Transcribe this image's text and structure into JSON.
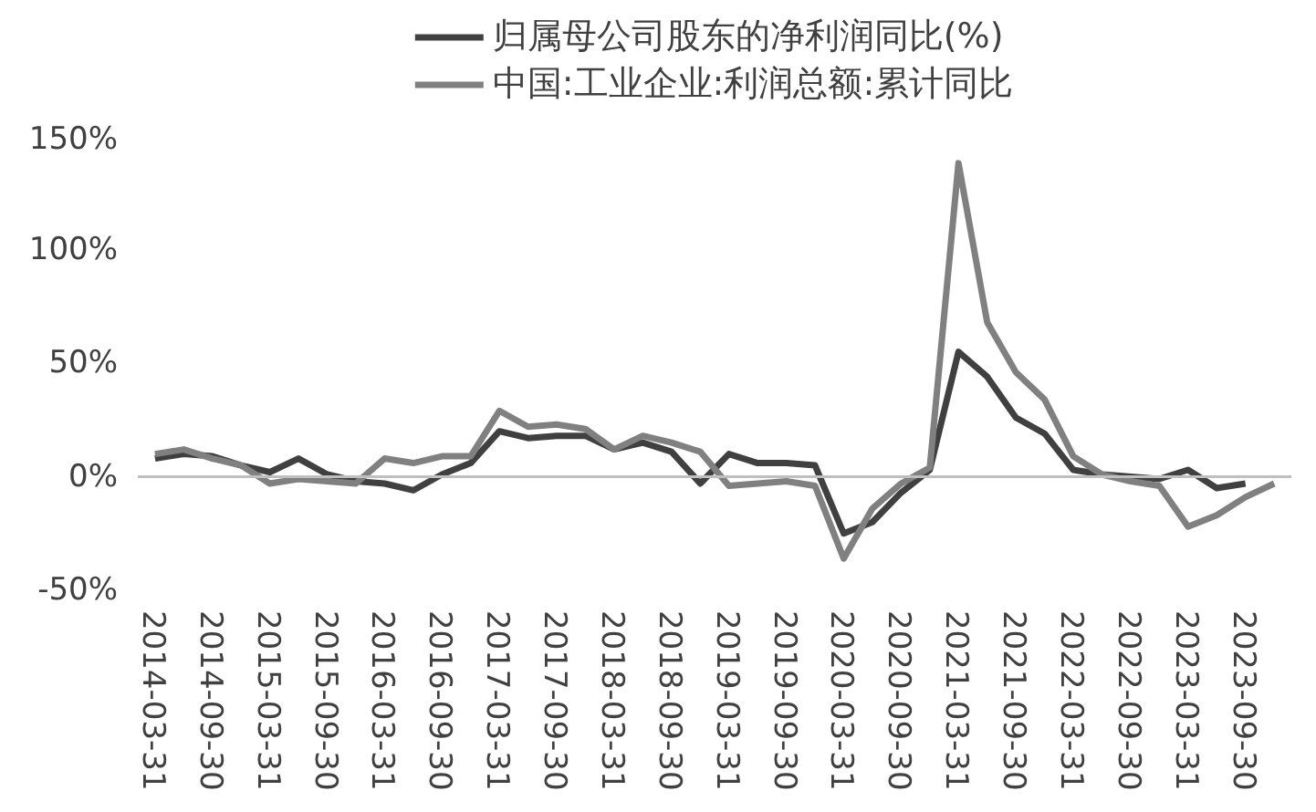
{
  "chart_data": {
    "type": "line",
    "categories": [
      "2014-03-31",
      null,
      "2014-09-30",
      null,
      "2015-03-31",
      null,
      "2015-09-30",
      null,
      "2016-03-31",
      null,
      "2016-09-30",
      null,
      "2017-03-31",
      null,
      "2017-09-30",
      null,
      "2018-03-31",
      null,
      "2018-09-30",
      null,
      "2019-03-31",
      null,
      "2019-09-30",
      null,
      "2020-03-31",
      null,
      "2020-09-30",
      null,
      "2021-03-31",
      null,
      "2021-09-30",
      null,
      "2022-03-31",
      null,
      "2022-09-30",
      null,
      "2023-03-31",
      null,
      "2023-09-30",
      null
    ],
    "series": [
      {
        "name": "归属母公司股东的净利润同比(%)",
        "color": "#404040",
        "values": [
          8,
          10,
          9,
          5,
          2,
          8,
          1,
          -2,
          -3,
          -6,
          1,
          6,
          20,
          17,
          18,
          18,
          12,
          15,
          11,
          -3,
          10,
          6,
          6,
          5,
          -25,
          -20,
          -7,
          3,
          55,
          44,
          26,
          19,
          3,
          1,
          0,
          -1,
          3,
          -5,
          -3,
          null
        ]
      },
      {
        "name": "中国:工业企业:利润总额:累计同比",
        "color": "#808080",
        "values": [
          10,
          12,
          8,
          5,
          -3,
          -1,
          -2,
          -3,
          8,
          6,
          9,
          9,
          29,
          22,
          23,
          21,
          12,
          18,
          15,
          11,
          -4,
          -3,
          -2,
          -4,
          -36,
          -14,
          -3,
          4,
          138,
          68,
          46,
          34,
          9,
          1,
          -2,
          -4,
          -22,
          -17,
          -9,
          -3
        ]
      }
    ],
    "ylim": [
      -50,
      150
    ],
    "yticks": [
      {
        "value": -50,
        "label": "-50%"
      },
      {
        "value": 0,
        "label": "0%"
      },
      {
        "value": 50,
        "label": "50%"
      },
      {
        "value": 100,
        "label": "100%"
      },
      {
        "value": 150,
        "label": "150%"
      }
    ],
    "ref_lines": [
      {
        "axis": "y",
        "value": 0,
        "color": "#bfbfbf"
      }
    ],
    "grid": false,
    "legend": "top",
    "marker": "none",
    "line_style": "solid"
  }
}
